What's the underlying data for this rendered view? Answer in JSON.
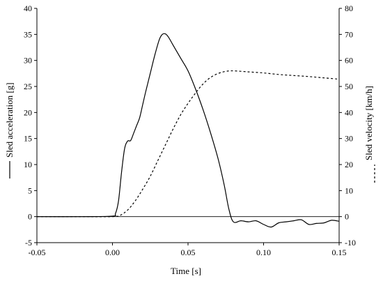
{
  "chart_data": {
    "type": "line",
    "xlabel": "Time [s]",
    "ylabel_left": "Sled acceleration [g]",
    "ylabel_right": "Sled velocity [km/h]",
    "xlim": [
      -0.05,
      0.15
    ],
    "ylim_left": [
      -5,
      40
    ],
    "ylim_right": [
      -10,
      80
    ],
    "x_ticks": [
      -0.05,
      0.0,
      0.05,
      0.1,
      0.15
    ],
    "x_tick_labels": [
      "-0.05",
      "0.00",
      "0.05",
      "0.10",
      "0.15"
    ],
    "y_left_ticks": [
      -5,
      0,
      5,
      10,
      15,
      20,
      25,
      30,
      35,
      40
    ],
    "y_left_tick_labels": [
      "-5",
      "0",
      "5",
      "10",
      "15",
      "20",
      "25",
      "30",
      "35",
      "40"
    ],
    "y_right_ticks": [
      -10,
      0,
      10,
      20,
      30,
      40,
      50,
      60,
      70,
      80
    ],
    "y_right_tick_labels": [
      "-10",
      "0",
      "10",
      "20",
      "30",
      "40",
      "50",
      "60",
      "70",
      "80"
    ],
    "grid": false,
    "legend": "in-axis-labels",
    "series": [
      {
        "axis": "left",
        "line_style": "solid",
        "color": "#000000",
        "x": [
          -0.05,
          -0.02,
          0.0,
          0.002,
          0.004,
          0.006,
          0.008,
          0.01,
          0.012,
          0.014,
          0.016,
          0.018,
          0.02,
          0.022,
          0.025,
          0.028,
          0.031,
          0.033,
          0.035,
          0.037,
          0.04,
          0.045,
          0.05,
          0.055,
          0.06,
          0.065,
          0.07,
          0.074,
          0.077,
          0.08,
          0.085,
          0.09,
          0.095,
          0.1,
          0.105,
          0.11,
          0.115,
          0.12,
          0.125,
          0.13,
          0.135,
          0.14,
          0.145,
          0.15
        ],
        "y": [
          0,
          0,
          0.1,
          0.6,
          3.0,
          8.5,
          13.0,
          14.5,
          14.6,
          16.0,
          17.5,
          19.0,
          21.5,
          24.0,
          27.5,
          31.0,
          34.0,
          35.0,
          35.1,
          34.5,
          33.0,
          30.5,
          28.0,
          24.5,
          20.5,
          16.0,
          11.0,
          6.0,
          1.5,
          -1.0,
          -0.8,
          -1.0,
          -0.8,
          -1.5,
          -2.0,
          -1.2,
          -1.0,
          -0.8,
          -0.6,
          -1.5,
          -1.3,
          -1.2,
          -0.7,
          -0.9
        ]
      },
      {
        "axis": "right",
        "line_style": "dashed",
        "color": "#000000",
        "x": [
          -0.05,
          -0.02,
          0.0,
          0.005,
          0.01,
          0.015,
          0.02,
          0.025,
          0.03,
          0.035,
          0.04,
          0.045,
          0.05,
          0.055,
          0.06,
          0.065,
          0.07,
          0.075,
          0.08,
          0.09,
          0.1,
          0.11,
          0.12,
          0.13,
          0.14,
          0.15
        ],
        "y": [
          0,
          0,
          0,
          0.5,
          2.5,
          6.0,
          10.5,
          15.5,
          21.5,
          27.5,
          33.5,
          39.0,
          43.5,
          47.5,
          51.0,
          53.5,
          55.0,
          55.8,
          56.0,
          55.6,
          55.2,
          54.6,
          54.2,
          53.8,
          53.3,
          52.8
        ]
      }
    ]
  }
}
